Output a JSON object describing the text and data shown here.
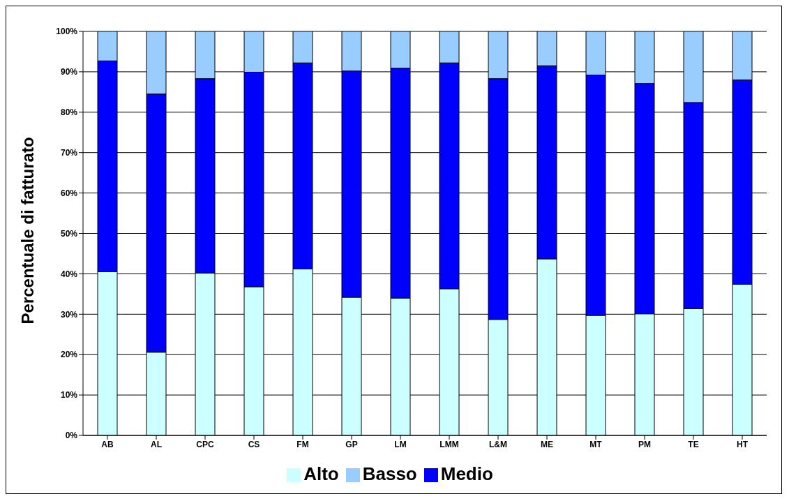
{
  "chart_data": {
    "type": "bar",
    "stacked": true,
    "ylabel": "Percentuale di fatturato",
    "categories": [
      "AB",
      "AL",
      "CPC",
      "CS",
      "FM",
      "GP",
      "LM",
      "LMM",
      "L&M",
      "ME",
      "MT",
      "PM",
      "TE",
      "HT"
    ],
    "series": [
      {
        "name": "Alto",
        "color": "#ccffff",
        "values": [
          40.5,
          20.6,
          40.2,
          36.8,
          41.2,
          34.2,
          34.0,
          36.3,
          28.7,
          43.7,
          29.7,
          30.1,
          31.4,
          37.4
        ]
      },
      {
        "name": "Medio",
        "color": "#0000ff",
        "values": [
          52.2,
          63.9,
          48.1,
          53.1,
          51.0,
          56.0,
          56.9,
          55.9,
          59.6,
          47.8,
          59.5,
          57.0,
          51.0,
          50.6
        ]
      },
      {
        "name": "Basso",
        "color": "#99ccff",
        "values": [
          7.3,
          15.5,
          11.7,
          10.1,
          7.8,
          9.8,
          9.1,
          7.8,
          11.7,
          8.5,
          10.8,
          12.9,
          17.6,
          12.0
        ]
      }
    ],
    "ylim": [
      0,
      100
    ],
    "yticks": [
      {
        "value": 0,
        "label": "0%"
      },
      {
        "value": 10,
        "label": "10%"
      },
      {
        "value": 20,
        "label": "20%"
      },
      {
        "value": 30,
        "label": "30%"
      },
      {
        "value": 40,
        "label": "40%"
      },
      {
        "value": 50,
        "label": "50%"
      },
      {
        "value": 60,
        "label": "60%"
      },
      {
        "value": 70,
        "label": "70%"
      },
      {
        "value": 80,
        "label": "80%"
      },
      {
        "value": 90,
        "label": "90%"
      },
      {
        "value": 100,
        "label": "100%"
      }
    ],
    "grid": "y",
    "legend": "bottom"
  }
}
